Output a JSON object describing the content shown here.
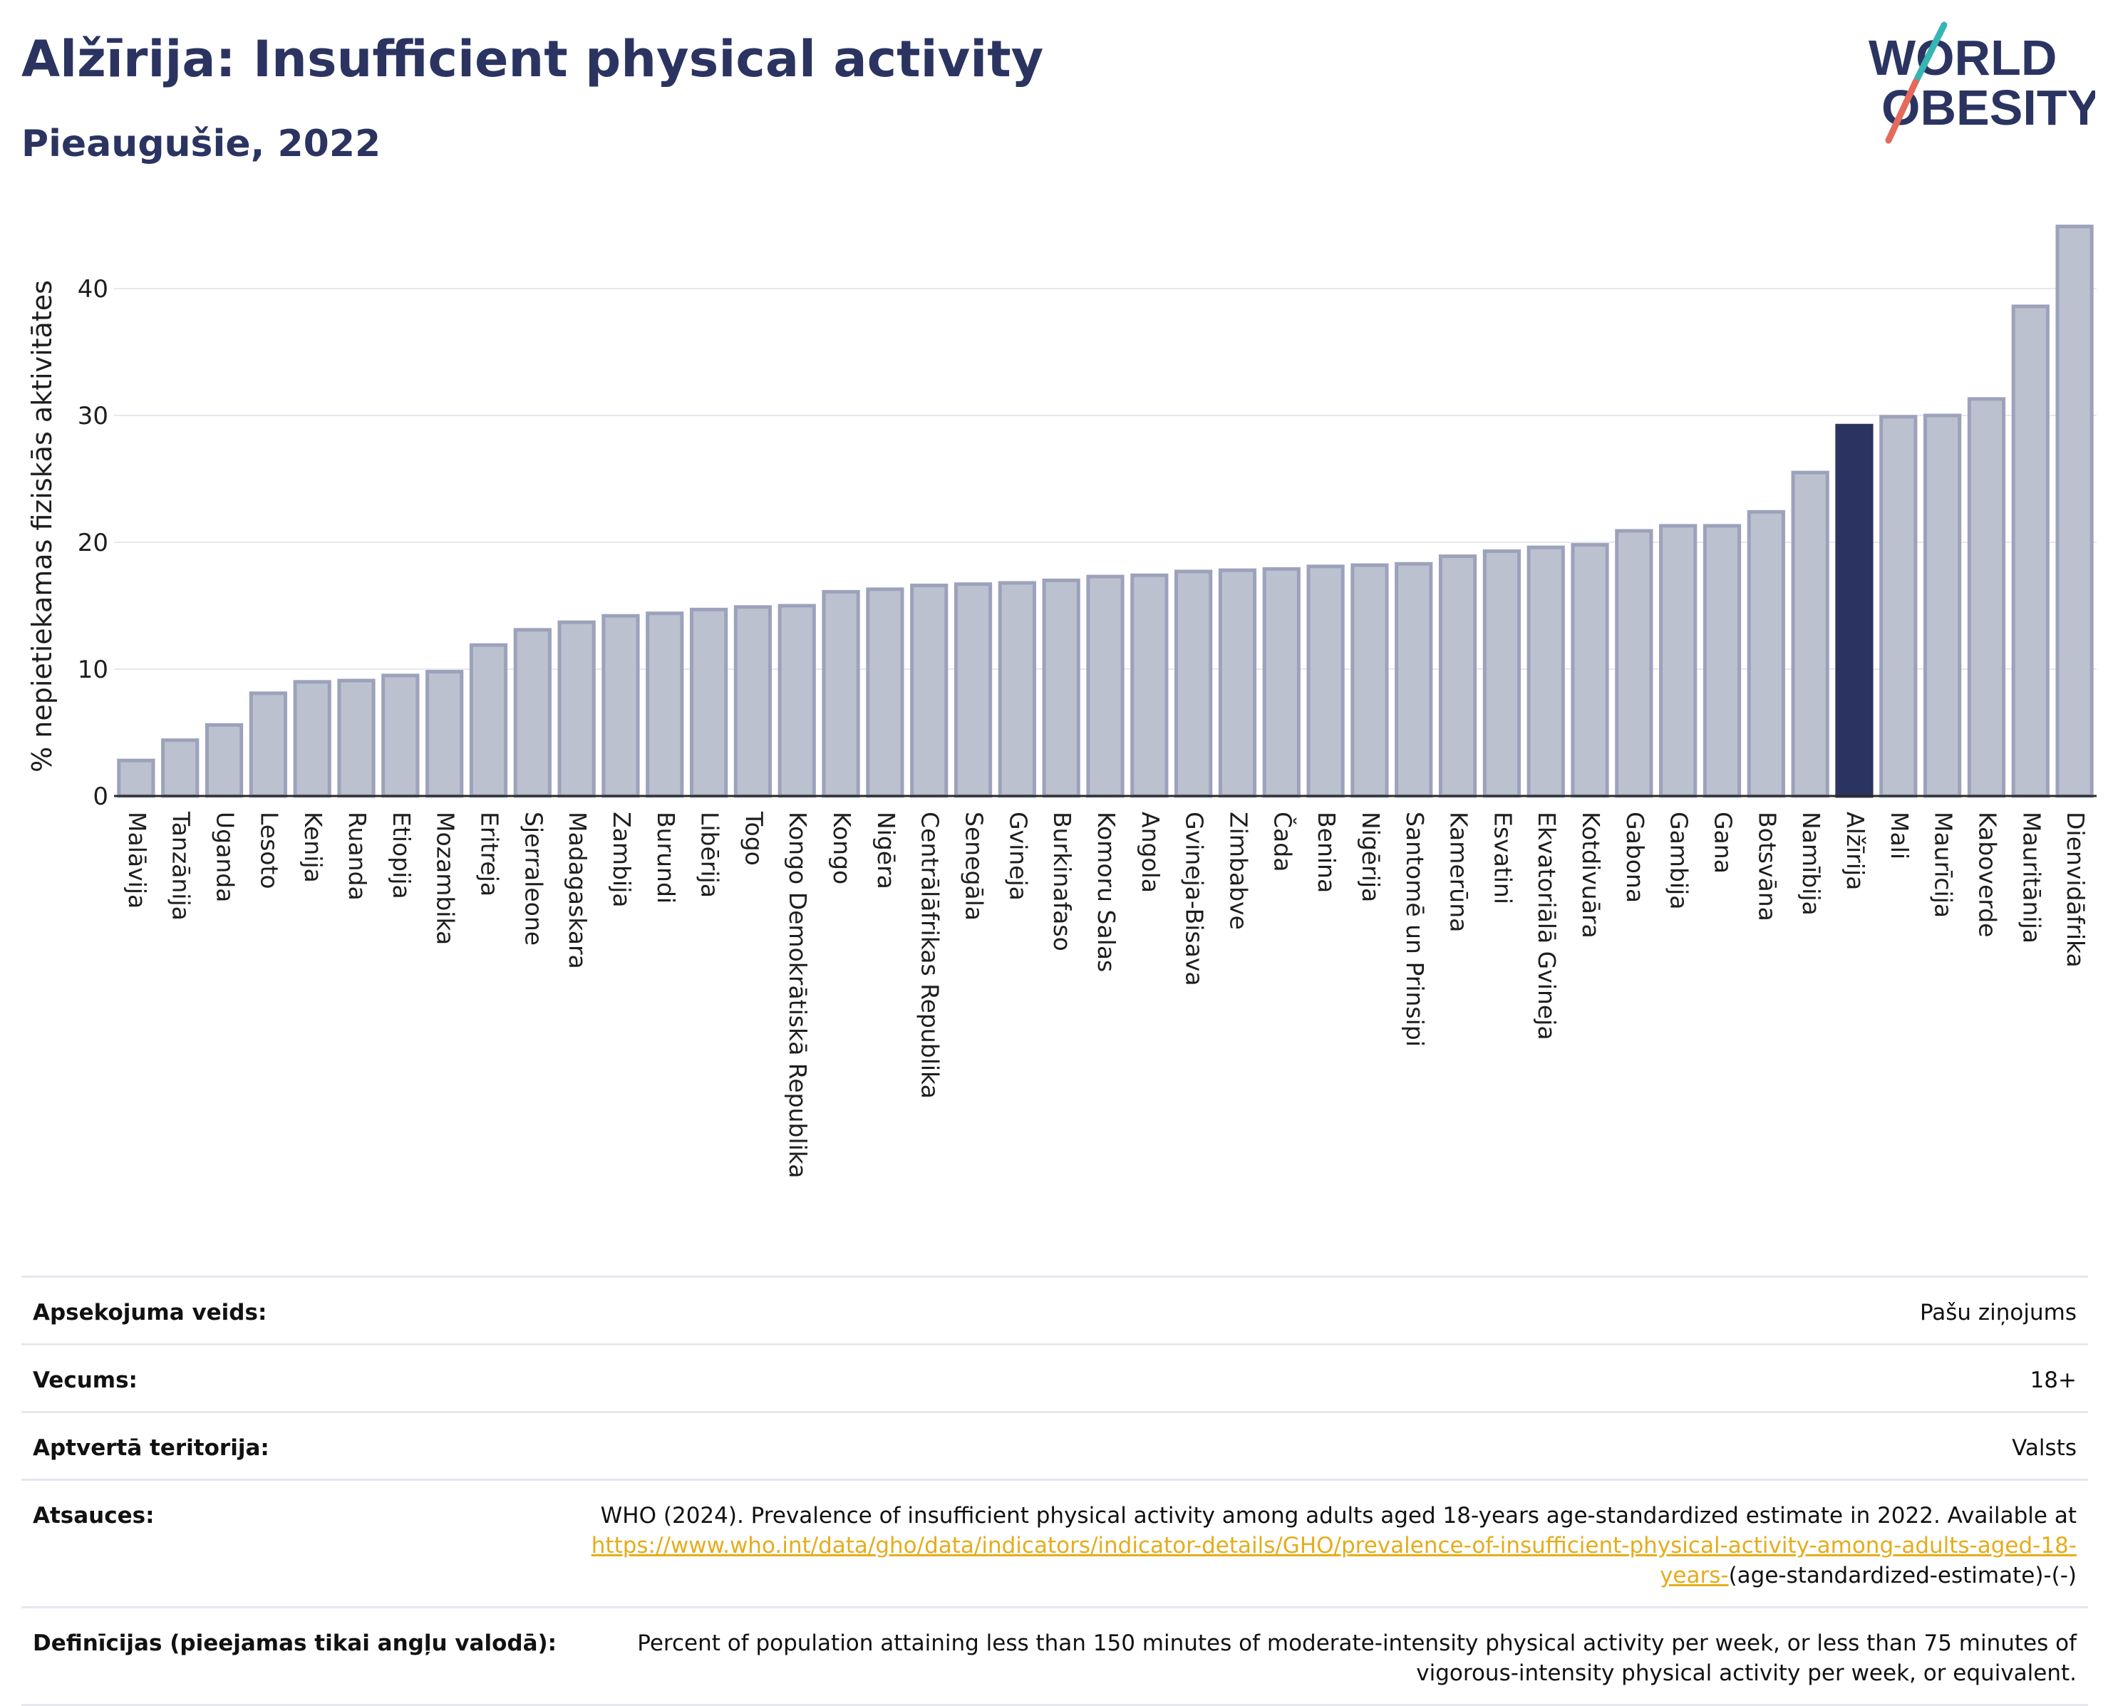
{
  "header": {
    "title": "Alžīrija: Insufficient physical activity",
    "subtitle": "Pieaugušie, 2022",
    "logo_line1": "WORLD",
    "logo_line2": "OBESITY"
  },
  "colors": {
    "title": "#2b3461",
    "bar_default": "#bcc1cf",
    "bar_default_border": "#9ca2bb",
    "bar_highlight": "#2b3461",
    "accent_teal": "#36b6b2",
    "accent_coral": "#e46a5b",
    "link": "#e5ad1c"
  },
  "chart_data": {
    "type": "bar",
    "title": "",
    "xlabel": "",
    "ylabel": "% nepietiekamas fiziskās aktivitātes",
    "ylim": [
      0,
      45
    ],
    "yticks": [
      0,
      10,
      20,
      30,
      40
    ],
    "grid": true,
    "highlight": "Alžīrija",
    "categories": [
      "Malāvija",
      "Tanzānija",
      "Uganda",
      "Lesoto",
      "Kenija",
      "Ruanda",
      "Etiopija",
      "Mozambika",
      "Eritreja",
      "Sjerraleone",
      "Madagaskara",
      "Zambija",
      "Burundi",
      "Libērija",
      "Togo",
      "Kongo Demokrātiskā Republika",
      "Kongo",
      "Nigēra",
      "Centrālāfrikas Republika",
      "Senegāla",
      "Gvineja",
      "Burkinafaso",
      "Komoru Salas",
      "Angola",
      "Gvineja-Bisava",
      "Zimbabve",
      "Čada",
      "Benina",
      "Nigērija",
      "Santomē un Prinsipi",
      "Kamerūna",
      "Esvatini",
      "Ekvatoriālā Gvineja",
      "Kotdivuāra",
      "Gabona",
      "Gambija",
      "Gana",
      "Botsvāna",
      "Namībija",
      "Alžīrija",
      "Mali",
      "Maurīcija",
      "Kaboverde",
      "Mauritānija",
      "Dienvidāfrika"
    ],
    "values": [
      2.8,
      4.4,
      5.6,
      8.1,
      9.0,
      9.1,
      9.5,
      9.8,
      11.9,
      13.1,
      13.7,
      14.2,
      14.4,
      14.7,
      14.9,
      15.0,
      16.1,
      16.3,
      16.6,
      16.7,
      16.8,
      17.0,
      17.3,
      17.4,
      17.7,
      17.8,
      17.9,
      18.1,
      18.2,
      18.3,
      18.9,
      19.3,
      19.6,
      19.8,
      20.9,
      21.3,
      21.3,
      22.4,
      25.5,
      29.2,
      29.9,
      30.0,
      31.3,
      38.6,
      44.9
    ]
  },
  "meta": [
    {
      "label": "Apsekojuma veids:",
      "value": "Pašu ziņojums"
    },
    {
      "label": "Vecums:",
      "value": "18+"
    },
    {
      "label": "Aptvertā teritorija:",
      "value": "Valsts"
    },
    {
      "label": "Atsauces:",
      "value_prefix": "WHO (2024). Prevalence of insufficient physical activity among adults aged 18-years age-standardized estimate in 2022. Available at",
      "link": "https://www.who.int/data/gho/data/indicators/indicator-details/GHO/prevalence-of-insufficient-physical-activity-among-adults-aged-18-years-",
      "value_suffix": "(age-standardized-estimate)-(-)"
    },
    {
      "label": "Definīcijas (pieejamas tikai angļu valodā):",
      "value": "Percent of population attaining less than 150 minutes of moderate-intensity physical activity per week, or less than 75 minutes of vigorous-intensity physical activity per week, or equivalent."
    }
  ]
}
